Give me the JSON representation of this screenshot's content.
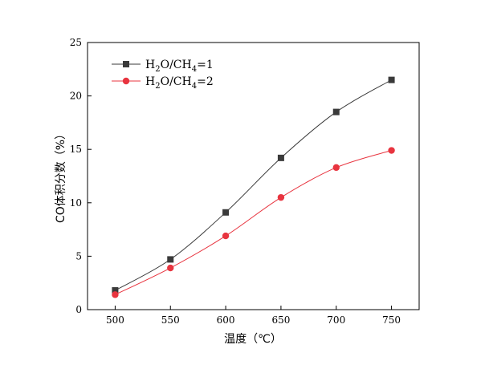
{
  "chart_data": {
    "type": "line",
    "xlabel": "温度（℃）",
    "ylabel": "CO体积分数（%）",
    "x": [
      500,
      550,
      600,
      650,
      700,
      750
    ],
    "xlim": [
      475,
      775
    ],
    "ylim": [
      0,
      25
    ],
    "xticks": [
      500,
      550,
      600,
      650,
      700,
      750
    ],
    "yticks": [
      0,
      5,
      10,
      15,
      20,
      25
    ],
    "grid": false,
    "legend_position": "top-left",
    "series": [
      {
        "name": "H2O/CH4=1",
        "legend": {
          "a": "H",
          "a_sub": "2",
          "b": "O/CH",
          "b_sub": "4",
          "c": "=1"
        },
        "marker": "square",
        "color": "#3a3a3a",
        "values": [
          1.8,
          4.7,
          9.1,
          14.2,
          18.5,
          21.5
        ]
      },
      {
        "name": "H2O/CH4=2",
        "legend": {
          "a": "H",
          "a_sub": "2",
          "b": "O/CH",
          "b_sub": "4",
          "c": "=2"
        },
        "marker": "circle",
        "color": "#e8343f",
        "values": [
          1.4,
          3.9,
          6.9,
          10.5,
          13.3,
          14.9
        ]
      }
    ]
  }
}
